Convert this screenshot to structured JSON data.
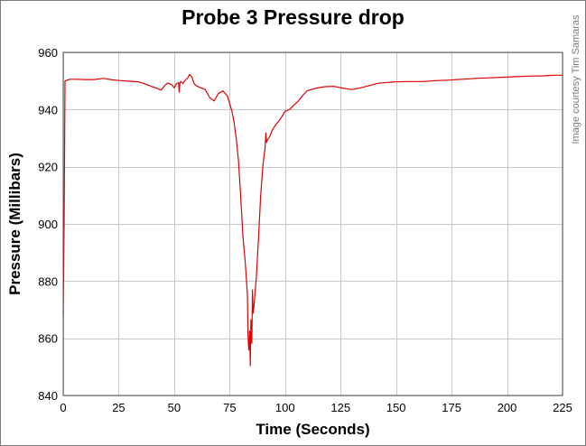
{
  "credit": "Image courtesy Tim Samaras",
  "chart_data": {
    "type": "line",
    "title": "Probe 3 Pressure drop",
    "xlabel": "Time (Seconds)",
    "ylabel": "Pressure (Millibars)",
    "xlim": [
      0,
      225
    ],
    "ylim": [
      840,
      960
    ],
    "xticks": [
      0,
      25,
      50,
      75,
      100,
      125,
      150,
      175,
      200,
      225
    ],
    "yticks": [
      840,
      860,
      880,
      900,
      920,
      940,
      960
    ],
    "grid": true,
    "line_color": "#e00000",
    "series": [
      {
        "x": [
          0.0,
          0.4,
          0.8,
          1.5,
          3,
          6,
          10,
          14,
          18,
          22,
          26,
          30,
          34,
          38,
          40,
          42,
          44,
          45,
          46,
          47,
          48,
          49,
          50,
          51,
          52,
          52.3,
          52.6,
          53,
          54,
          55,
          56,
          57,
          58,
          59,
          60,
          62,
          64,
          66,
          68,
          69,
          70,
          72,
          74,
          76,
          77,
          78,
          79,
          80,
          81,
          82,
          83,
          83.3,
          83.6,
          84,
          84.3,
          84.6,
          85,
          85.3,
          85.6,
          86,
          87,
          88,
          89,
          90,
          91,
          91.3,
          91.6,
          92,
          93,
          94,
          95,
          96,
          97,
          98,
          100,
          102,
          104,
          106,
          108,
          110,
          114,
          118,
          122,
          126,
          130,
          134,
          138,
          142,
          146,
          150,
          156,
          162,
          168,
          174,
          180,
          186,
          192,
          198,
          204,
          210,
          216,
          222,
          225
        ],
        "y": [
          868,
          900,
          950,
          950.2,
          950.6,
          950.6,
          950.5,
          950.5,
          950.9,
          950.4,
          950.1,
          949.9,
          949.7,
          948.6,
          948.0,
          947.5,
          946.8,
          947.6,
          948.6,
          949.3,
          949.0,
          948.6,
          947.6,
          949.0,
          949.4,
          946.0,
          949.4,
          949.8,
          949.1,
          950.3,
          950.9,
          952.3,
          951.3,
          949.0,
          948.3,
          947.6,
          947.0,
          944.2,
          943.0,
          944.4,
          945.7,
          946.5,
          944.7,
          939.5,
          935.6,
          929.7,
          921.8,
          909.4,
          895.5,
          887.0,
          875.5,
          861.0,
          855.9,
          862.5,
          850.4,
          866.5,
          858.2,
          876.9,
          868.8,
          871.7,
          880.9,
          894.8,
          910.0,
          920.5,
          927.0,
          931.8,
          928.5,
          929.3,
          930.5,
          932.4,
          933.8,
          934.9,
          935.8,
          936.9,
          939.4,
          940.0,
          941.6,
          943.0,
          945.0,
          946.6,
          947.5,
          948.0,
          948.1,
          947.5,
          947.0,
          947.6,
          948.4,
          949.2,
          949.5,
          949.7,
          949.8,
          949.8,
          950.1,
          950.3,
          950.6,
          950.9,
          951.1,
          951.3,
          951.5,
          951.7,
          951.8,
          952.0,
          952.0
        ]
      }
    ]
  }
}
